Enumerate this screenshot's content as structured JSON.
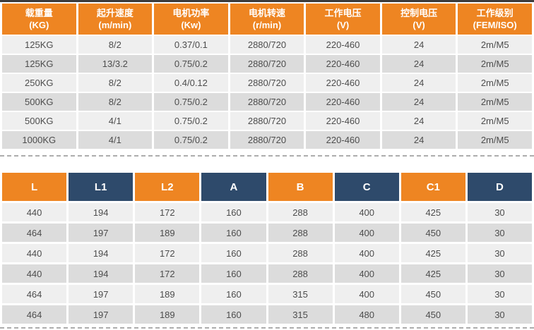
{
  "colors": {
    "header_orange": "#ee8522",
    "header_navy": "#2e4a6b",
    "row_light": "#efefef",
    "row_dark": "#dcdcdc",
    "cell_text": "#4d4d4d",
    "dashed_line": "#adadad",
    "top_line": "#3d3d3d"
  },
  "spec_table": {
    "headers": [
      {
        "line1": "载重量",
        "line2": "(KG)"
      },
      {
        "line1": "起升速度",
        "line2": "(m/min)"
      },
      {
        "line1": "电机功率",
        "line2": "(Kw)"
      },
      {
        "line1": "电机转速",
        "line2": "(r/min)"
      },
      {
        "line1": "工作电压",
        "line2": "(V)"
      },
      {
        "line1": "控制电压",
        "line2": "(V)"
      },
      {
        "line1": "工作级别",
        "line2": "(FEM/ISO)"
      }
    ],
    "rows": [
      [
        "125KG",
        "8/2",
        "0.37/0.1",
        "2880/720",
        "220-460",
        "24",
        "2m/M5"
      ],
      [
        "125KG",
        "13/3.2",
        "0.75/0.2",
        "2880/720",
        "220-460",
        "24",
        "2m/M5"
      ],
      [
        "250KG",
        "8/2",
        "0.4/0.12",
        "2880/720",
        "220-460",
        "24",
        "2m/M5"
      ],
      [
        "500KG",
        "8/2",
        "0.75/0.2",
        "2880/720",
        "220-460",
        "24",
        "2m/M5"
      ],
      [
        "500KG",
        "4/1",
        "0.75/0.2",
        "2880/720",
        "220-460",
        "24",
        "2m/M5"
      ],
      [
        "1000KG",
        "4/1",
        "0.75/0.2",
        "2880/720",
        "220-460",
        "24",
        "2m/M5"
      ]
    ]
  },
  "dim_table": {
    "headers": [
      "L",
      "L1",
      "L2",
      "A",
      "B",
      "C",
      "C1",
      "D"
    ],
    "rows": [
      [
        "440",
        "194",
        "172",
        "160",
        "288",
        "400",
        "425",
        "30"
      ],
      [
        "464",
        "197",
        "189",
        "160",
        "288",
        "400",
        "450",
        "30"
      ],
      [
        "440",
        "194",
        "172",
        "160",
        "288",
        "400",
        "425",
        "30"
      ],
      [
        "440",
        "194",
        "172",
        "160",
        "288",
        "400",
        "425",
        "30"
      ],
      [
        "464",
        "197",
        "189",
        "160",
        "315",
        "400",
        "450",
        "30"
      ],
      [
        "464",
        "197",
        "189",
        "160",
        "315",
        "480",
        "450",
        "30"
      ]
    ]
  }
}
